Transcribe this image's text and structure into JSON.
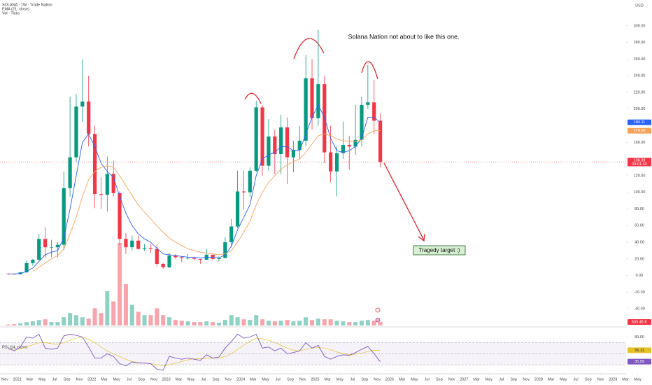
{
  "chart_data": {
    "type": "candlestick",
    "title": "SOLANA · 1W · Trade Nation",
    "indicators": [
      "EMA (21, close)",
      "Vol · Ticks"
    ],
    "currency": "USD",
    "annotation": "Solana Nation not about to like this one.",
    "target_label": "Tragedy target :)",
    "countdown": "09:01:33",
    "up_color": "#089981",
    "down_color": "#f23645",
    "x": [
      "2020-11",
      "2020-12",
      "2021-01",
      "2021-02",
      "2021-03",
      "2021-04",
      "2021-05",
      "2021-06",
      "2021-07",
      "2021-08",
      "2021-09",
      "2021-10",
      "2021-11",
      "2021-12",
      "2022-01",
      "2022-02",
      "2022-03",
      "2022-04",
      "2022-05",
      "2022-06",
      "2022-07",
      "2022-08",
      "2022-09",
      "2022-10",
      "2022-11",
      "2022-12",
      "2023-01",
      "2023-02",
      "2023-03",
      "2023-04",
      "2023-05",
      "2023-06",
      "2023-07",
      "2023-08",
      "2023-09",
      "2023-10",
      "2023-11",
      "2023-12",
      "2024-01",
      "2024-02",
      "2024-03",
      "2024-04",
      "2024-05",
      "2024-06",
      "2024-07",
      "2024-08",
      "2024-09",
      "2024-10",
      "2024-11",
      "2024-12",
      "2025-01",
      "2025-02",
      "2025-03",
      "2025-04",
      "2025-05",
      "2025-06",
      "2025-07",
      "2025-08",
      "2025-09",
      "2025-10",
      "2025-11"
    ],
    "open": [
      1.9,
      1.8,
      1.5,
      3.8,
      15,
      19,
      44,
      34,
      34,
      37,
      105,
      142,
      203,
      209,
      170,
      98,
      97,
      122,
      99,
      44,
      34,
      42,
      32,
      33,
      32,
      14,
      10,
      24,
      22,
      21,
      21,
      20,
      19,
      25,
      20,
      21,
      40,
      59,
      101,
      100,
      126,
      202,
      132,
      167,
      146,
      178,
      142,
      151,
      162,
      237,
      189,
      230,
      148,
      125,
      147,
      157,
      155,
      163,
      205,
      208,
      186
    ],
    "high": [
      3,
      2,
      4.2,
      18,
      20,
      50,
      58,
      43,
      40,
      125,
      215,
      218,
      260,
      240,
      180,
      118,
      143,
      138,
      101,
      51,
      48,
      48,
      38,
      38,
      38,
      15,
      27,
      26,
      23,
      26,
      22,
      20,
      32,
      26,
      23,
      46,
      68,
      126,
      126,
      130,
      210,
      205,
      188,
      175,
      193,
      190,
      162,
      180,
      265,
      260,
      295,
      240,
      180,
      155,
      185,
      168,
      205,
      215,
      253,
      235,
      195
    ],
    "low": [
      1.5,
      1.2,
      1.4,
      3.5,
      12,
      18,
      21,
      22,
      22,
      31,
      95,
      136,
      185,
      155,
      81,
      80,
      77,
      95,
      37,
      26,
      30,
      31,
      30,
      27,
      11,
      8,
      9,
      20,
      16,
      19,
      18,
      14,
      18,
      18,
      17,
      21,
      36,
      57,
      79,
      94,
      124,
      120,
      126,
      122,
      122,
      110,
      124,
      140,
      155,
      175,
      180,
      135,
      112,
      95,
      140,
      127,
      145,
      155,
      200,
      170,
      130
    ],
    "close": [
      1.8,
      1.5,
      3.8,
      15,
      19,
      44,
      34,
      34,
      37,
      105,
      142,
      203,
      209,
      170,
      98,
      97,
      122,
      99,
      44,
      34,
      42,
      32,
      33,
      32,
      14,
      10,
      24,
      22,
      21,
      21,
      20,
      19,
      25,
      20,
      21,
      40,
      59,
      101,
      100,
      126,
      202,
      132,
      167,
      146,
      178,
      142,
      151,
      162,
      237,
      189,
      230,
      148,
      125,
      147,
      157,
      155,
      163,
      205,
      208,
      186,
      136.39
    ],
    "ylim": [
      -60,
      331
    ],
    "yticks": [
      {
        "value": -40,
        "label": "-40.00"
      },
      {
        "value": -20,
        "label": "-20.00"
      },
      {
        "value": 0,
        "label": "0.00"
      },
      {
        "value": 20,
        "label": "20.00"
      },
      {
        "value": 40,
        "label": "40.00"
      },
      {
        "value": 60,
        "label": "60.00"
      },
      {
        "value": 80,
        "label": "80.00"
      },
      {
        "value": 100,
        "label": "100.00"
      },
      {
        "value": 120,
        "label": "120.00"
      },
      {
        "value": 160,
        "label": "160.00"
      },
      {
        "value": 200,
        "label": "200.00"
      },
      {
        "value": 220,
        "label": "220.00"
      },
      {
        "value": 240,
        "label": "240.00"
      },
      {
        "value": 260,
        "label": "260.00"
      },
      {
        "value": 280,
        "label": "280.00"
      },
      {
        "value": 300,
        "label": "300.00"
      }
    ],
    "xticks": [
      {
        "value": "2020-11",
        "label": "Nov"
      },
      {
        "value": "2021-01",
        "label": "2021"
      },
      {
        "value": "2021-03",
        "label": "Mar"
      },
      {
        "value": "2021-05",
        "label": "May"
      },
      {
        "value": "2021-07",
        "label": "Jul"
      },
      {
        "value": "2021-09",
        "label": "Sep"
      },
      {
        "value": "2021-11",
        "label": "Nov"
      },
      {
        "value": "2022-01",
        "label": "2022"
      },
      {
        "value": "2022-03",
        "label": "Mar"
      },
      {
        "value": "2022-05",
        "label": "May"
      },
      {
        "value": "2022-07",
        "label": "Jul"
      },
      {
        "value": "2022-09",
        "label": "Sep"
      },
      {
        "value": "2022-11",
        "label": "Nov"
      },
      {
        "value": "2023-01",
        "label": "2023"
      },
      {
        "value": "2023-03",
        "label": "Mar"
      },
      {
        "value": "2023-05",
        "label": "May"
      },
      {
        "value": "2023-07",
        "label": "Jul"
      },
      {
        "value": "2023-09",
        "label": "Sep"
      },
      {
        "value": "2023-11",
        "label": "Nov"
      },
      {
        "value": "2024-01",
        "label": "2024"
      },
      {
        "value": "2024-03",
        "label": "Mar"
      },
      {
        "value": "2024-05",
        "label": "May"
      },
      {
        "value": "2024-07",
        "label": "Jul"
      },
      {
        "value": "2024-09",
        "label": "Sep"
      },
      {
        "value": "2024-11",
        "label": "Nov"
      },
      {
        "value": "2025-01",
        "label": "2025"
      },
      {
        "value": "2025-03",
        "label": "Mar"
      },
      {
        "value": "2025-05",
        "label": "May"
      },
      {
        "value": "2025-07",
        "label": "Jul"
      },
      {
        "value": "2025-09",
        "label": "Sep"
      },
      {
        "value": "2025-11",
        "label": "Nov"
      },
      {
        "value": "2026-01",
        "label": "2026"
      },
      {
        "value": "2026-03",
        "label": "Mar"
      },
      {
        "value": "2026-05",
        "label": "May"
      },
      {
        "value": "2026-07",
        "label": "Jul"
      },
      {
        "value": "2026-09",
        "label": "Sep"
      },
      {
        "value": "2026-11",
        "label": "Nov"
      },
      {
        "value": "2027-01",
        "label": "2027"
      },
      {
        "value": "2027-03",
        "label": "Mar"
      },
      {
        "value": "2027-05",
        "label": "May"
      },
      {
        "value": "2027-07",
        "label": "Jul"
      },
      {
        "value": "2027-09",
        "label": "Sep"
      },
      {
        "value": "2027-11",
        "label": "Nov"
      },
      {
        "value": "2028-01",
        "label": "2028"
      },
      {
        "value": "2028-03",
        "label": "Mar"
      },
      {
        "value": "2028-05",
        "label": "May"
      },
      {
        "value": "2028-07",
        "label": "Jul"
      },
      {
        "value": "2028-09",
        "label": "Sep"
      },
      {
        "value": "2028-11",
        "label": "Nov"
      },
      {
        "value": "2029-01",
        "label": "2029"
      },
      {
        "value": "2029-03",
        "label": "Mar"
      },
      {
        "value": "2029-05",
        "label": "May"
      }
    ],
    "lines": [
      {
        "color": "#2962ff",
        "values": [
          2,
          2,
          2.5,
          5,
          9,
          17,
          25,
          28,
          30,
          45,
          80,
          120,
          160,
          170,
          155,
          135,
          125,
          118,
          95,
          75,
          60,
          50,
          44,
          40,
          33,
          26,
          25,
          24,
          23,
          22,
          22,
          21,
          22,
          22,
          21,
          25,
          35,
          55,
          70,
          85,
          120,
          140,
          145,
          148,
          155,
          155,
          150,
          150,
          170,
          190,
          205,
          190,
          165,
          150,
          148,
          150,
          155,
          165,
          190,
          190,
          184.11
        ]
      },
      {
        "color": "#f7a35c",
        "last_label": "174.00",
        "values": [
          null,
          null,
          null,
          null,
          5,
          10,
          15,
          20,
          24,
          32,
          50,
          70,
          95,
          115,
          125,
          130,
          132,
          130,
          120,
          108,
          96,
          85,
          76,
          68,
          60,
          52,
          45,
          40,
          36,
          32,
          30,
          28,
          27,
          26,
          25,
          26,
          30,
          40,
          52,
          65,
          85,
          100,
          112,
          120,
          128,
          133,
          137,
          140,
          148,
          158,
          168,
          170,
          168,
          164,
          162,
          161,
          161,
          163,
          170,
          174,
          174
        ]
      }
    ],
    "volume": {
      "vlim": [
        0,
        12000
      ],
      "last_label": "530.46 K",
      "values": [
        150,
        200,
        300,
        500,
        600,
        800,
        900,
        500,
        500,
        1200,
        1800,
        1500,
        1200,
        1000,
        2500,
        1800,
        5000,
        3500,
        12000,
        6000,
        3000,
        2000,
        1500,
        1500,
        2500,
        1500,
        1200,
        800,
        700,
        600,
        500,
        500,
        600,
        500,
        400,
        800,
        1500,
        1200,
        900,
        800,
        1500,
        900,
        700,
        600,
        700,
        800,
        600,
        700,
        1200,
        800,
        1000,
        900,
        900,
        700,
        600,
        500,
        500,
        700,
        800,
        700,
        530.46
      ]
    },
    "rsi": {
      "title": "RSI (14, close)",
      "color": "#7e57c2",
      "ylim": [
        15,
        97
      ],
      "yticks": [
        {
          "value": 80,
          "label": "80.00"
        }
      ],
      "bands": [
        30,
        50,
        70
      ],
      "values": [
        60,
        55,
        62,
        80,
        78,
        85,
        60,
        58,
        60,
        82,
        85,
        83,
        80,
        62,
        42,
        42,
        50,
        45,
        32,
        28,
        35,
        33,
        33,
        32,
        22,
        20,
        45,
        42,
        40,
        42,
        40,
        38,
        48,
        42,
        44,
        60,
        72,
        85,
        78,
        80,
        85,
        60,
        62,
        55,
        60,
        50,
        52,
        55,
        70,
        60,
        65,
        45,
        40,
        45,
        48,
        47,
        52,
        58,
        63,
        50,
        35.59
      ],
      "ma": {
        "color": "#e6c229",
        "values": [
          58,
          58,
          59,
          62,
          66,
          70,
          70,
          68,
          67,
          70,
          74,
          78,
          80,
          76,
          70,
          62,
          55,
          50,
          45,
          40,
          36,
          34,
          33,
          32,
          30,
          28,
          30,
          33,
          36,
          39,
          41,
          41,
          42,
          42,
          42,
          45,
          50,
          58,
          65,
          72,
          78,
          77,
          74,
          70,
          65,
          60,
          56,
          55,
          58,
          60,
          61,
          60,
          57,
          53,
          50,
          48,
          49,
          51,
          54,
          56,
          56.11
        ]
      }
    }
  }
}
